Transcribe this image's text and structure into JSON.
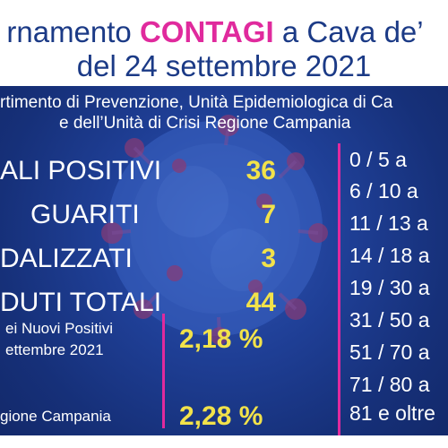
{
  "header": {
    "title_pre": "rnamento ",
    "title_highlight": "CONTAGI",
    "title_post": " a Cava de’",
    "title_line2": "del 24 settembre 2021"
  },
  "source": {
    "line1": "rtimento di Prevenzione, Unità Epidemiologica di Ca",
    "line2": "e dell’Unità di Crisi Regione Campania"
  },
  "stats": [
    {
      "label": "ALI POSITIVI",
      "value": "36"
    },
    {
      "label": "GUARITI",
      "value": "7"
    },
    {
      "label": "DALIZZATI",
      "value": "3"
    },
    {
      "label": "DUTI TOTALI",
      "value": "44"
    }
  ],
  "percentages": {
    "nuovi_positivi_line1": "ei Nuovi Positivi",
    "nuovi_positivi_line2": "ettembre 2021",
    "nuovi_positivi_value": "2,18 %",
    "regione_label": "gione Campania",
    "regione_value": "2,28 %"
  },
  "age_groups": [
    "0  /   5 a",
    "6  /  10 a",
    "11  /  13 a",
    "14 / 18  a",
    "19 / 30 a",
    "31 / 50 a",
    "51 / 70 a",
    "71 / 80 a",
    "81 e oltre"
  ],
  "colors": {
    "background": "#1e3a8a",
    "accent_pink": "#e02a9d",
    "value_yellow": "#f2e24a",
    "title_blue": "#1b3a86"
  }
}
